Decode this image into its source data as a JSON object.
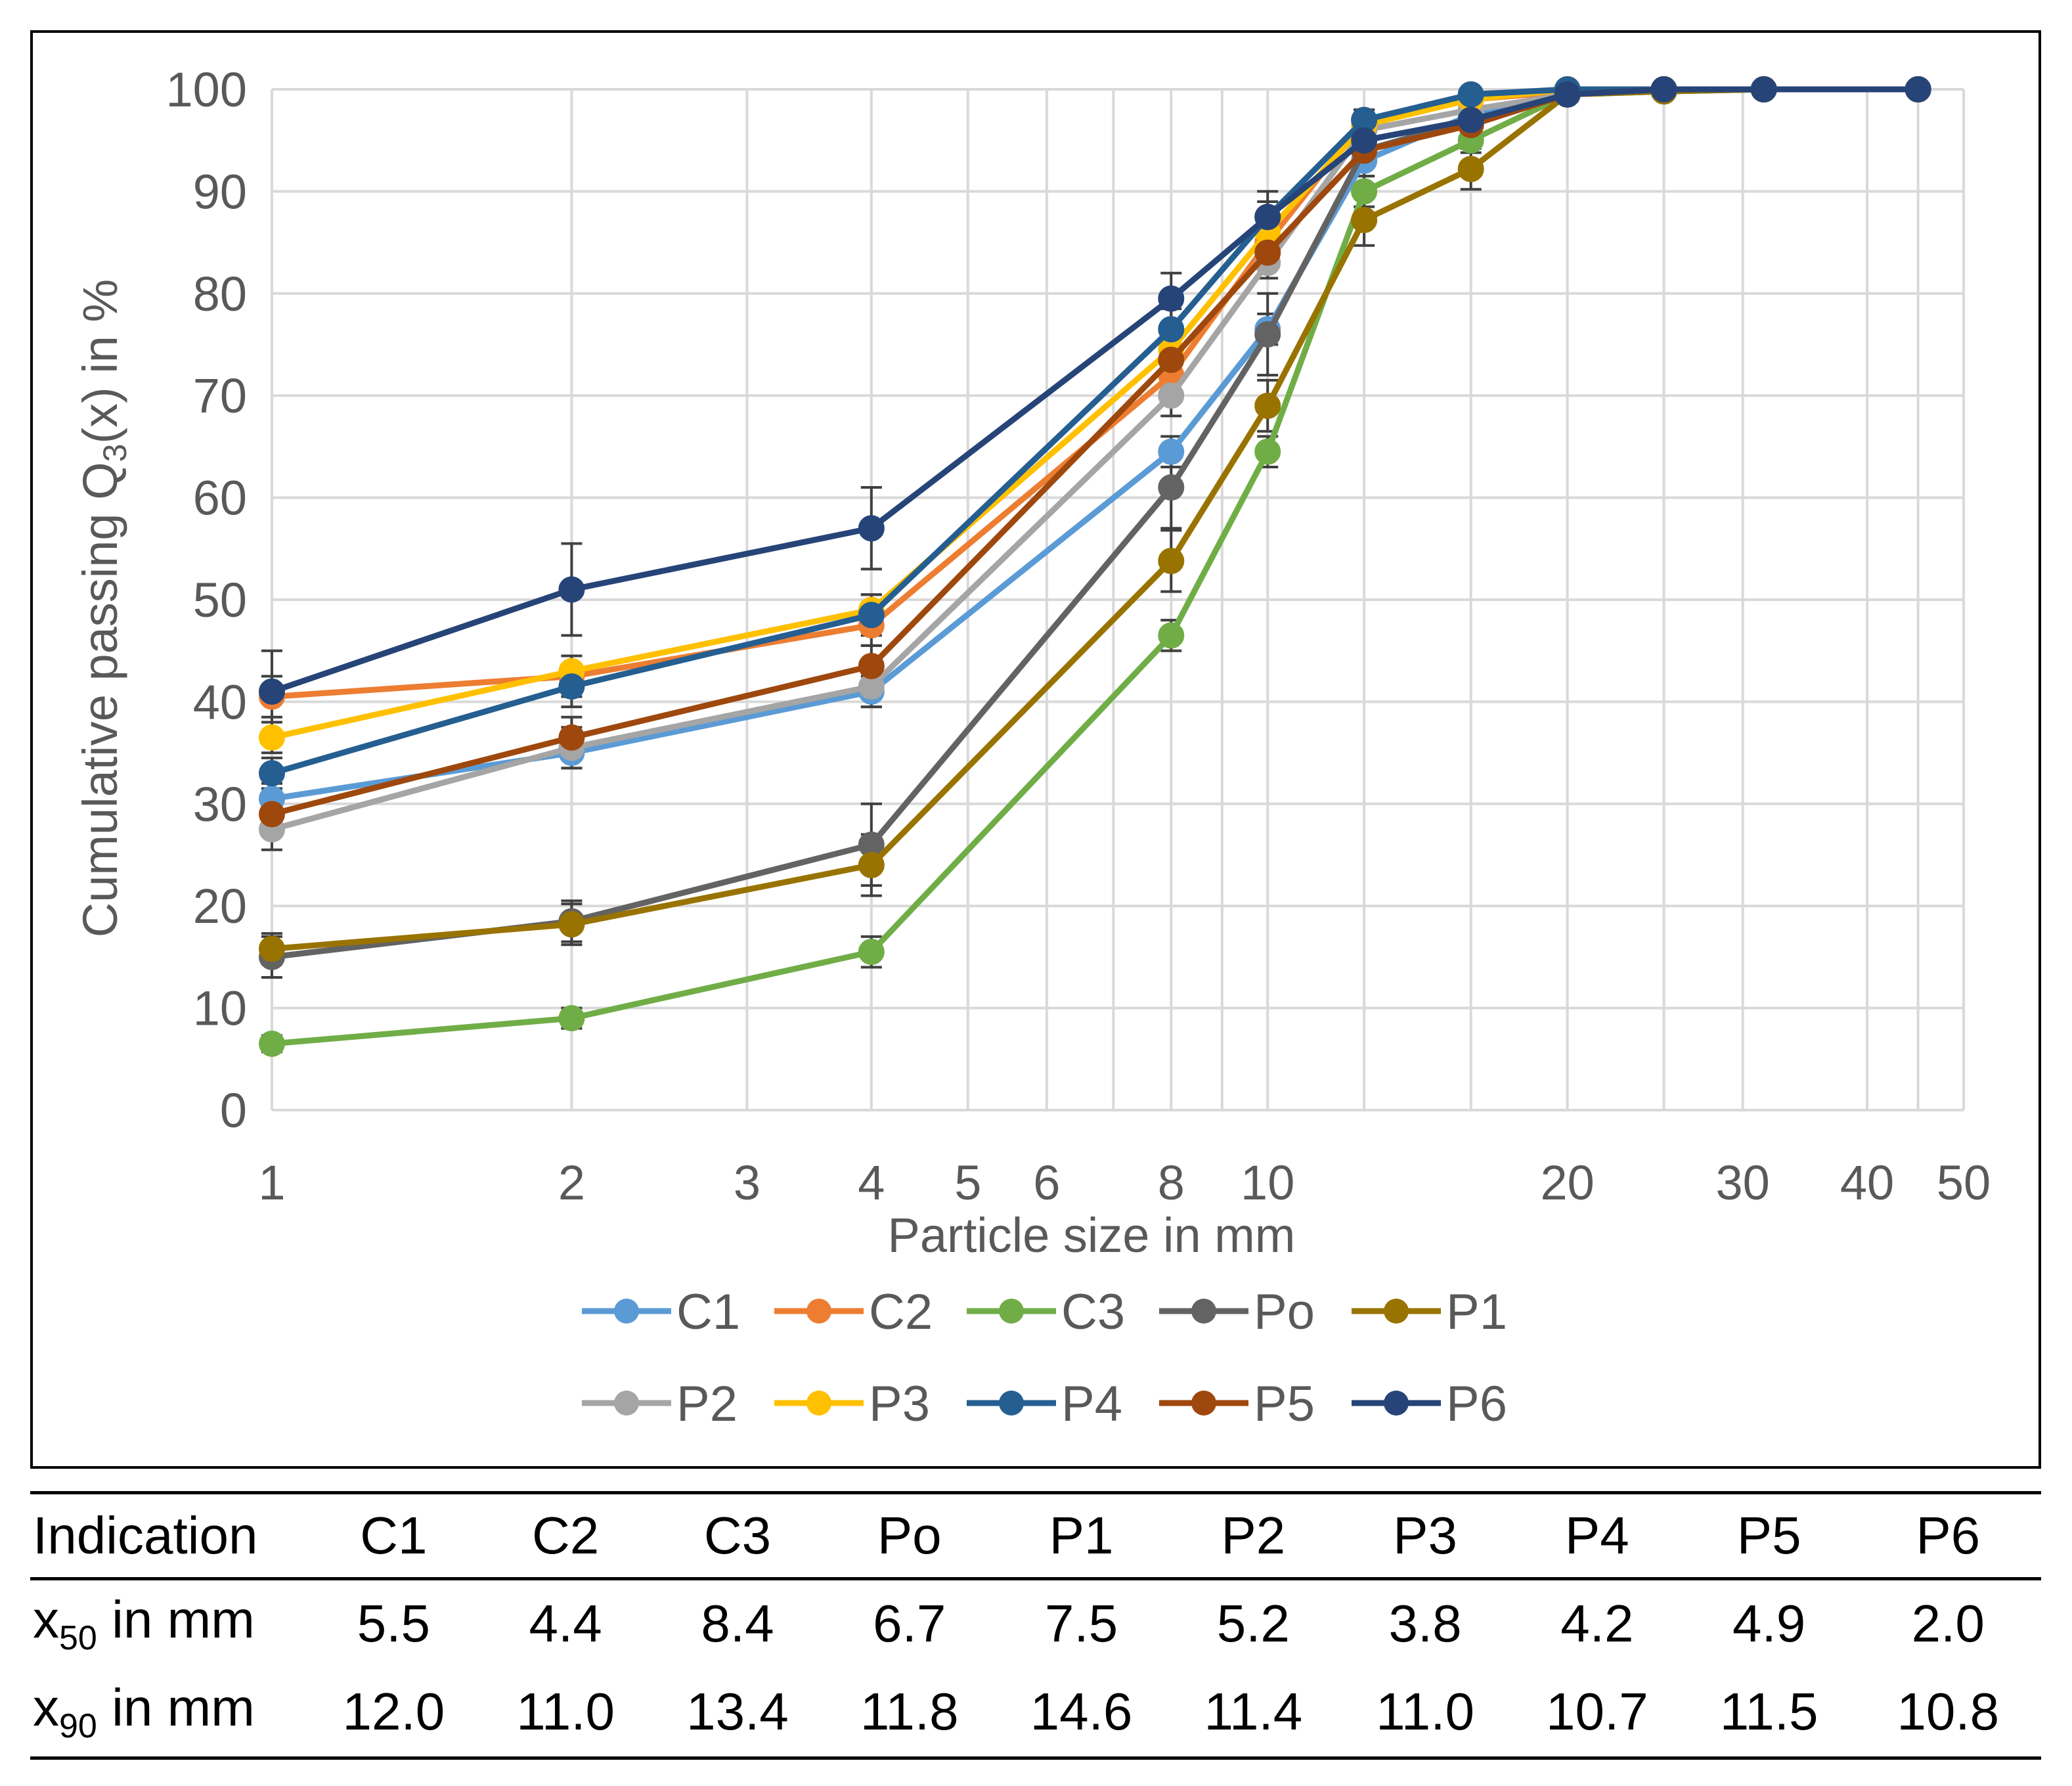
{
  "chart_data": {
    "type": "line",
    "xscale": "log",
    "xlabel": "Particle size in mm",
    "ylabel_prefix": "Cumulative  passing Q",
    "ylabel_sub": "3",
    "ylabel_suffix": "(x) in %",
    "xlim": [
      1,
      50
    ],
    "ylim": [
      0,
      100
    ],
    "x_ticks": [
      1,
      2,
      3,
      4,
      5,
      6,
      8,
      10,
      20,
      30,
      40,
      50
    ],
    "x_tick_labels": [
      "1",
      "2",
      "3",
      "4",
      "5",
      "6",
      "8",
      "10",
      "20",
      "30",
      "40",
      "50"
    ],
    "x_minor_gridlines": [
      7,
      9,
      12.5,
      16,
      25,
      45
    ],
    "y_ticks": [
      0,
      10,
      20,
      30,
      40,
      50,
      60,
      70,
      80,
      90,
      100
    ],
    "y_tick_labels": [
      "0",
      "10",
      "20",
      "30",
      "40",
      "50",
      "60",
      "70",
      "80",
      "90",
      "100"
    ],
    "x": [
      1,
      2,
      4,
      8,
      10,
      12.5,
      16,
      20,
      25,
      31.5,
      45
    ],
    "legend_position": "bottom",
    "series": [
      {
        "name": "C1",
        "color": "#5B9BD5",
        "values": [
          30.5,
          35,
          41,
          64.5,
          76.5,
          93,
          97.5,
          99.5,
          99.8,
          100,
          100
        ],
        "errors": [
          1.5,
          1.5,
          1.5,
          1.5,
          1.5,
          1.5,
          1,
          0.5,
          0.3,
          0,
          0
        ]
      },
      {
        "name": "C2",
        "color": "#ED7D31",
        "values": [
          40.5,
          42.5,
          47.5,
          72,
          85,
          97,
          99,
          99.8,
          100,
          100,
          100
        ],
        "errors": [
          2,
          2,
          2,
          2,
          1.5,
          1,
          0.5,
          0.3,
          0,
          0,
          0
        ]
      },
      {
        "name": "C3",
        "color": "#70AD47",
        "values": [
          6.5,
          9,
          15.5,
          46.5,
          64.5,
          90,
          95,
          99.5,
          99.8,
          100,
          100
        ],
        "errors": [
          0.8,
          1,
          1.5,
          1.5,
          1.5,
          1.5,
          1.2,
          0.3,
          0.2,
          0,
          0
        ]
      },
      {
        "name": "Po",
        "color": "#636363",
        "values": [
          15,
          18.5,
          26,
          61,
          76,
          94,
          97,
          99.5,
          100,
          100,
          100
        ],
        "errors": [
          2,
          2,
          4,
          4,
          4,
          1.5,
          1,
          0.3,
          0,
          0,
          0
        ]
      },
      {
        "name": "P1",
        "color": "#997300",
        "values": [
          15.8,
          18.2,
          24,
          53.8,
          69,
          87.2,
          92.2,
          99.5,
          99.8,
          100,
          100
        ],
        "errors": [
          1.5,
          2,
          3,
          3,
          2.5,
          2.5,
          2,
          0.5,
          0.2,
          0,
          0
        ]
      },
      {
        "name": "P2",
        "color": "#A5A5A5",
        "values": [
          27.5,
          35.5,
          41.5,
          70,
          83,
          96,
          98,
          99.5,
          100,
          100,
          100
        ],
        "errors": [
          2,
          2,
          2,
          2,
          1.5,
          1,
          0.5,
          0.3,
          0,
          0,
          0
        ]
      },
      {
        "name": "P3",
        "color": "#FFC000",
        "values": [
          36.5,
          43,
          49,
          74.5,
          86,
          96.5,
          99,
          100,
          100,
          100,
          100
        ],
        "errors": [
          1.5,
          1.5,
          1.5,
          1.5,
          1.5,
          1,
          0.5,
          0,
          0,
          0,
          0
        ]
      },
      {
        "name": "P4",
        "color": "#255E91",
        "values": [
          33,
          41.5,
          48.5,
          76.5,
          87.5,
          97,
          99.5,
          100,
          100,
          100,
          100
        ],
        "errors": [
          1.5,
          2,
          2,
          2,
          1.5,
          1,
          0.5,
          0,
          0,
          0,
          0
        ]
      },
      {
        "name": "P5",
        "color": "#9E480E",
        "values": [
          29,
          36.5,
          43.5,
          73.5,
          84,
          94,
          96.5,
          99.5,
          100,
          100,
          100
        ],
        "errors": [
          2,
          2,
          2,
          2,
          1.5,
          1.5,
          1,
          0.3,
          0,
          0,
          0
        ]
      },
      {
        "name": "P6",
        "color": "#264478",
        "values": [
          41,
          51,
          57,
          79.5,
          87.5,
          95,
          97,
          99.5,
          100,
          100,
          100
        ],
        "errors": [
          4,
          4.5,
          4,
          2.5,
          2.5,
          1.5,
          1,
          0.3,
          0,
          0,
          0
        ]
      }
    ]
  },
  "table": {
    "header": [
      "Indication",
      "C1",
      "C2",
      "C3",
      "Po",
      "P1",
      "P2",
      "P3",
      "P4",
      "P5",
      "P6"
    ],
    "rows": [
      {
        "label_main": "x",
        "label_sub": "50",
        "label_rest": " in mm",
        "values": [
          "5.5",
          "4.4",
          "8.4",
          "6.7",
          "7.5",
          "5.2",
          "3.8",
          "4.2",
          "4.9",
          "2.0"
        ]
      },
      {
        "label_main": "x",
        "label_sub": "90",
        "label_rest": " in mm",
        "values": [
          "12.0",
          "11.0",
          "13.4",
          "11.8",
          "14.6",
          "11.4",
          "11.0",
          "10.7",
          "11.5",
          "10.8"
        ]
      }
    ]
  }
}
